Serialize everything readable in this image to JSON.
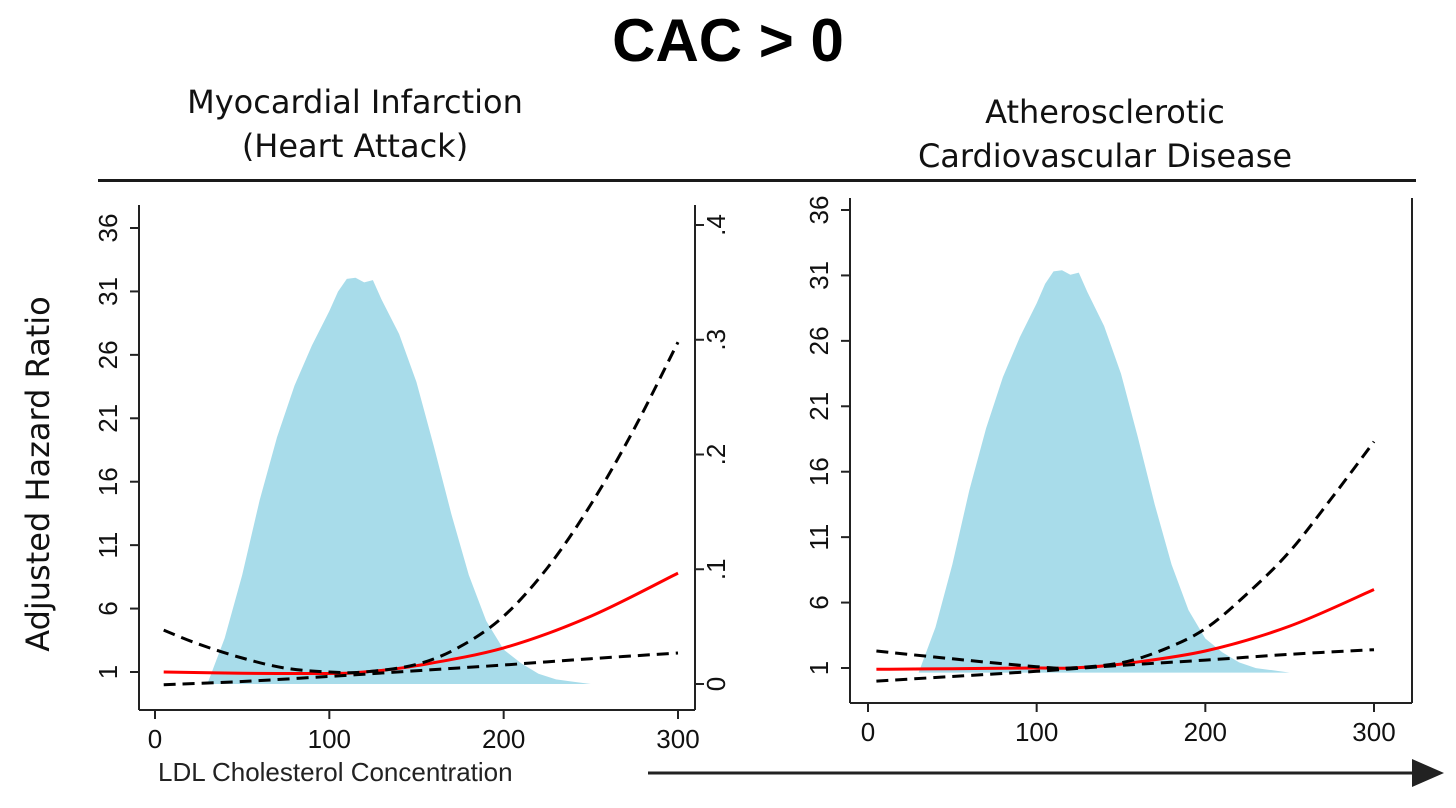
{
  "title": "CAC > 0",
  "ylabel": "Adjusted Hazard Ratio",
  "xlabel": "LDL Cholesterol Concentration",
  "colors": {
    "density": "#a8dcea",
    "estimate": "#ff0000",
    "ci": "#000000",
    "axis": "#222222"
  },
  "chart_data": [
    {
      "type": "line",
      "title_lines": [
        "Myocardial Infarction",
        "(Heart Attack)"
      ],
      "xlabel": "LDL Cholesterol Concentration",
      "ylabel": "Adjusted Hazard Ratio",
      "xlim": [
        0,
        305
      ],
      "ylim": [
        0,
        37
      ],
      "x_ticks": [
        "0",
        "100",
        "200",
        "300"
      ],
      "y_ticks": [
        "1",
        "6",
        "11",
        "16",
        "21",
        "26",
        "31",
        "36"
      ],
      "y2_ticks": [
        "0",
        ".1",
        ".2",
        ".3",
        ".4"
      ],
      "y2lim": [
        0,
        0.42
      ],
      "grid": false,
      "density_x": [
        30,
        40,
        50,
        60,
        70,
        80,
        90,
        100,
        105,
        110,
        115,
        120,
        125,
        130,
        140,
        150,
        160,
        170,
        180,
        190,
        200,
        210,
        220,
        230,
        240,
        250,
        260,
        280,
        300,
        305
      ],
      "density_y": [
        0.0,
        0.04,
        0.095,
        0.16,
        0.215,
        0.26,
        0.295,
        0.325,
        0.342,
        0.353,
        0.354,
        0.35,
        0.352,
        0.335,
        0.305,
        0.263,
        0.207,
        0.148,
        0.095,
        0.055,
        0.03,
        0.018,
        0.009,
        0.004,
        0.002,
        0.0,
        0.0,
        0.0,
        0.0,
        0.0
      ],
      "series": [
        {
          "role": "estimate",
          "x": [
            5,
            50,
            100,
            120,
            150,
            200,
            250,
            300
          ],
          "y": [
            1.0,
            0.9,
            0.88,
            1.0,
            1.5,
            2.9,
            5.4,
            8.8
          ]
        },
        {
          "role": "upper-ci",
          "x": [
            5,
            25,
            50,
            75,
            100,
            120,
            150,
            175,
            200,
            225,
            250,
            275,
            300
          ],
          "y": [
            4.3,
            3.2,
            2.1,
            1.3,
            1.0,
            1.0,
            1.6,
            3.0,
            5.4,
            9.2,
            14.2,
            20.2,
            27.0
          ]
        },
        {
          "role": "lower-ci",
          "x": [
            5,
            50,
            100,
            150,
            200,
            250,
            300
          ],
          "y": [
            0.0,
            0.25,
            0.65,
            1.1,
            1.55,
            2.05,
            2.5
          ]
        }
      ]
    },
    {
      "type": "line",
      "title_lines": [
        "Atherosclerotic",
        "Cardiovascular Disease"
      ],
      "xlim": [
        0,
        305
      ],
      "ylim": [
        0,
        37
      ],
      "x_ticks": [
        "0",
        "100",
        "200",
        "300"
      ],
      "y_ticks": [
        "1",
        "6",
        "11",
        "16",
        "21",
        "26",
        "31",
        "36"
      ],
      "grid": false,
      "density_x": [
        30,
        40,
        50,
        60,
        70,
        80,
        90,
        100,
        105,
        110,
        115,
        120,
        125,
        130,
        140,
        150,
        160,
        170,
        180,
        190,
        200,
        210,
        220,
        230,
        240,
        250,
        260,
        280,
        300,
        305
      ],
      "density_y": [
        0.0,
        0.04,
        0.095,
        0.16,
        0.215,
        0.26,
        0.295,
        0.325,
        0.342,
        0.353,
        0.354,
        0.35,
        0.352,
        0.335,
        0.305,
        0.263,
        0.207,
        0.148,
        0.095,
        0.055,
        0.03,
        0.018,
        0.009,
        0.004,
        0.002,
        0.0,
        0.0,
        0.0,
        0.0,
        0.0
      ],
      "series": [
        {
          "role": "estimate",
          "x": [
            5,
            50,
            100,
            120,
            150,
            200,
            250,
            300
          ],
          "y": [
            0.9,
            0.95,
            1.0,
            1.0,
            1.3,
            2.3,
            4.2,
            7.0
          ]
        },
        {
          "role": "upper-ci",
          "x": [
            5,
            50,
            100,
            120,
            150,
            175,
            200,
            225,
            250,
            275,
            300
          ],
          "y": [
            2.3,
            1.7,
            1.1,
            1.0,
            1.4,
            2.4,
            4.0,
            6.7,
            9.9,
            14.0,
            18.3
          ]
        },
        {
          "role": "lower-ci",
          "x": [
            5,
            50,
            100,
            150,
            200,
            250,
            300
          ],
          "y": [
            0.0,
            0.35,
            0.75,
            1.2,
            1.6,
            2.05,
            2.4
          ]
        }
      ]
    }
  ]
}
